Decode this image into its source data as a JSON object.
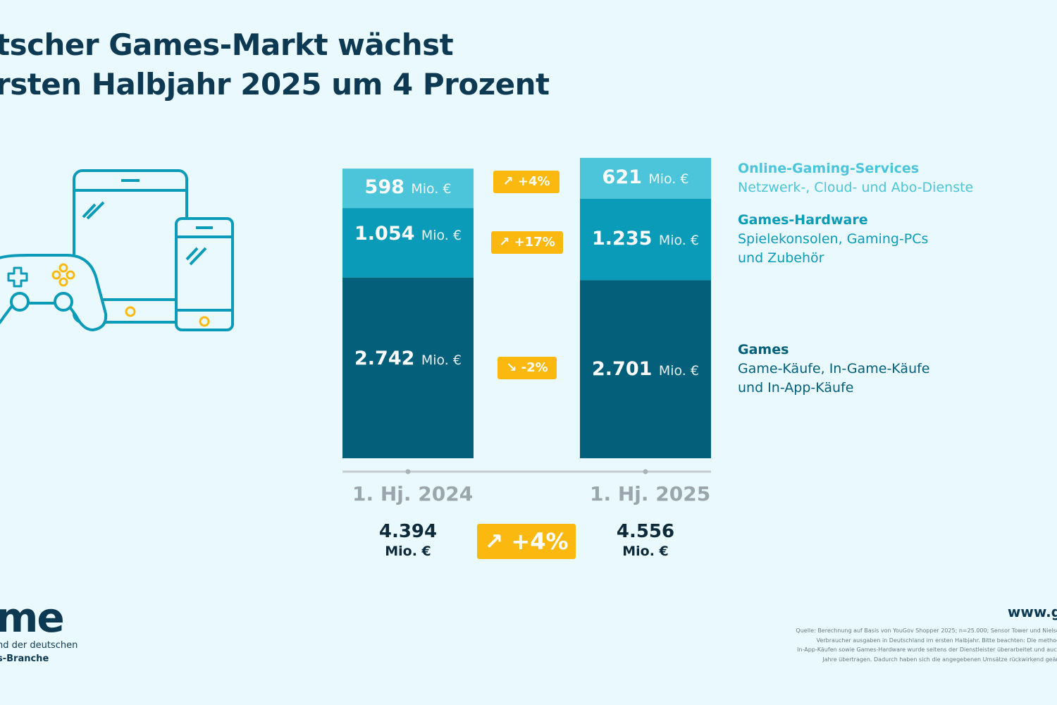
{
  "title": {
    "line1": "tscher Games-Markt wächst",
    "line2": "rsten Halbjahr 2025 um 4 Prozent"
  },
  "colors": {
    "games": "#045f7a",
    "hardware": "#0a9bb8",
    "online": "#4cc5da",
    "accent": "#fbb90f",
    "title": "#0d3a52"
  },
  "chart_data": {
    "type": "bar",
    "stacked": true,
    "unit": "Mio. €",
    "categories": [
      "1. Hj. 2024",
      "1. Hj. 2025"
    ],
    "series": [
      {
        "name": "Games",
        "values": [
          2742,
          2701
        ],
        "labels": [
          "2.742",
          "2.701"
        ],
        "change": "-2%",
        "direction": "down",
        "color": "#045f7a"
      },
      {
        "name": "Games-Hardware",
        "values": [
          1054,
          1235
        ],
        "labels": [
          "1.054",
          "1.235"
        ],
        "change": "+17%",
        "direction": "up",
        "color": "#0a9bb8"
      },
      {
        "name": "Online-Gaming-Services",
        "values": [
          598,
          621
        ],
        "labels": [
          "598",
          "621"
        ],
        "change": "+4%",
        "direction": "up",
        "color": "#4cc5da"
      }
    ],
    "totals": {
      "values": [
        "4.394",
        "4.556"
      ],
      "unit": "Mio. €",
      "change": "+4%"
    },
    "legend": [
      {
        "title": "Online-Gaming-Services",
        "desc1": "Netzwerk-, Cloud- und Abo-Dienste",
        "desc2": ""
      },
      {
        "title": "Games-Hardware",
        "desc1": "Spielekonsolen, Gaming-PCs",
        "desc2": "und Zubehör"
      },
      {
        "title": "Games",
        "desc1": "Game-Käufe, In-Game-Käufe",
        "desc2": "und In-App-Käufe"
      }
    ],
    "legend_position": "right"
  },
  "icons": {
    "devices": "controller-tablet-phone-icon",
    "arrow_up": "↗",
    "arrow_down": "↘"
  },
  "footer": {
    "logo": "me",
    "logo_sub1": "nd der deutschen",
    "logo_sub2": "s-Branche",
    "website": "www.g",
    "source": [
      "Quelle: Berechnung auf Basis von YouGov Shopper 2025; n=25.000; Sensor Tower und Nielsen IQ",
      "Verbraucher ausgaben in Deutschland im ersten Halbjahr. Bitte beachten: Die methodisch",
      "In-App-Käufen sowie Games-Hardware wurde seitens der Dienstleister überarbeitet und auch auf",
      "Jahre übertragen. Dadurch haben sich die angegebenen Umsätze rückwirkend geändert"
    ]
  }
}
